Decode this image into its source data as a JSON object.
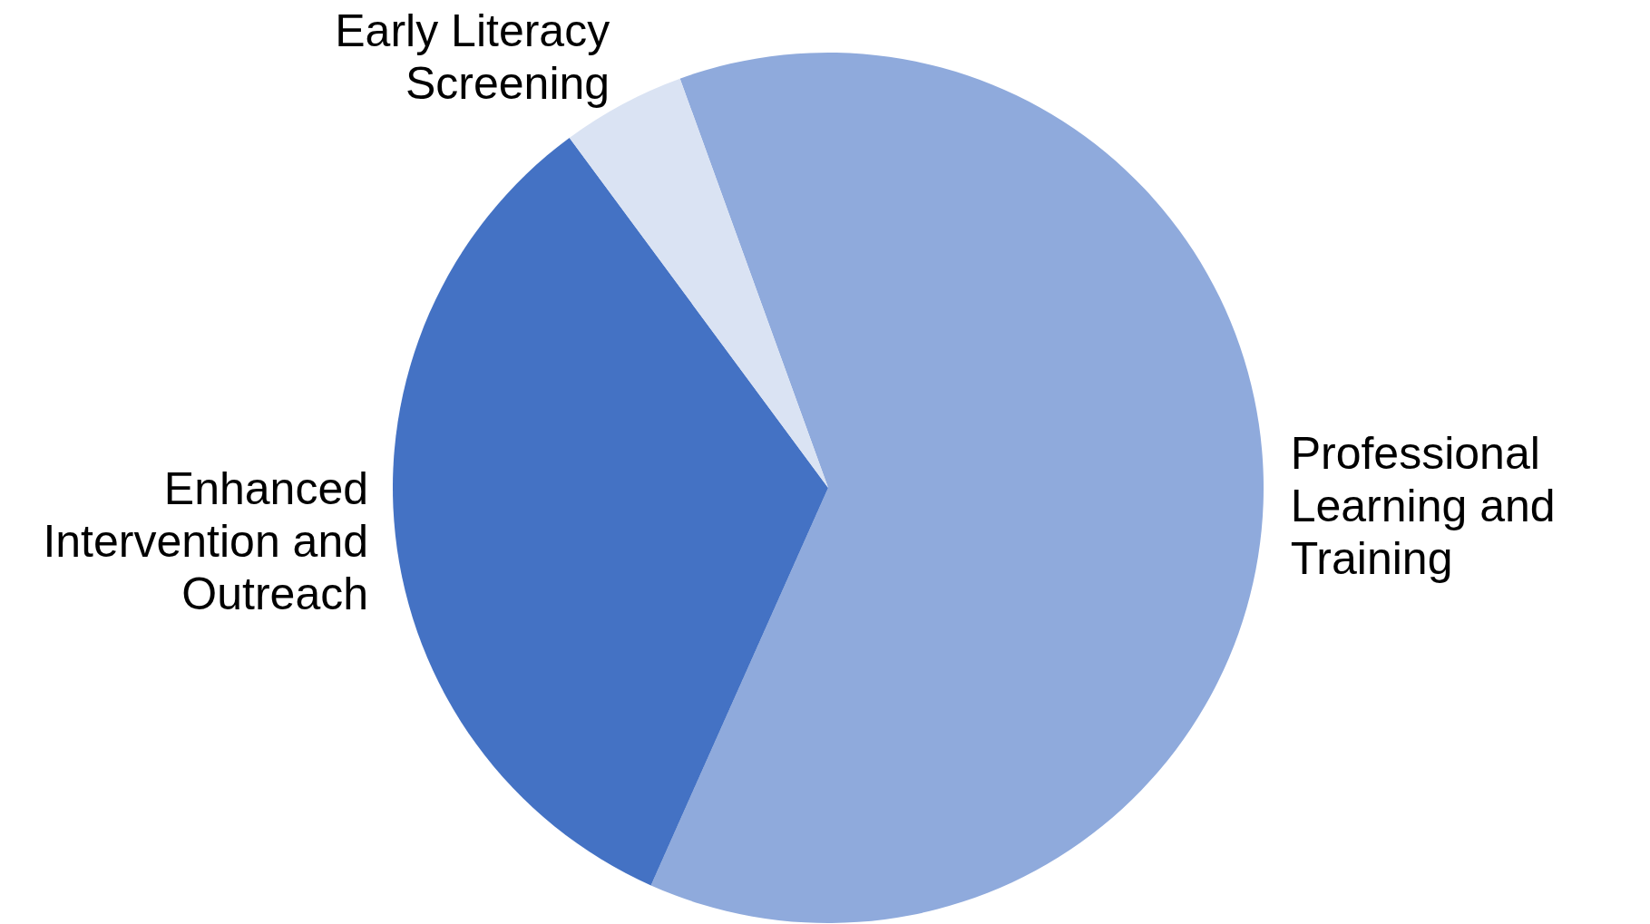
{
  "chart_data": {
    "type": "pie",
    "categories": [
      "Professional Learning and Training",
      "Enhanced Intervention and Outreach",
      "Early Literacy Screening"
    ],
    "values": [
      62.2,
      33.2,
      4.6
    ],
    "colors": [
      "#8faadc",
      "#4472c4",
      "#dae3f3"
    ],
    "legend": false
  }
}
